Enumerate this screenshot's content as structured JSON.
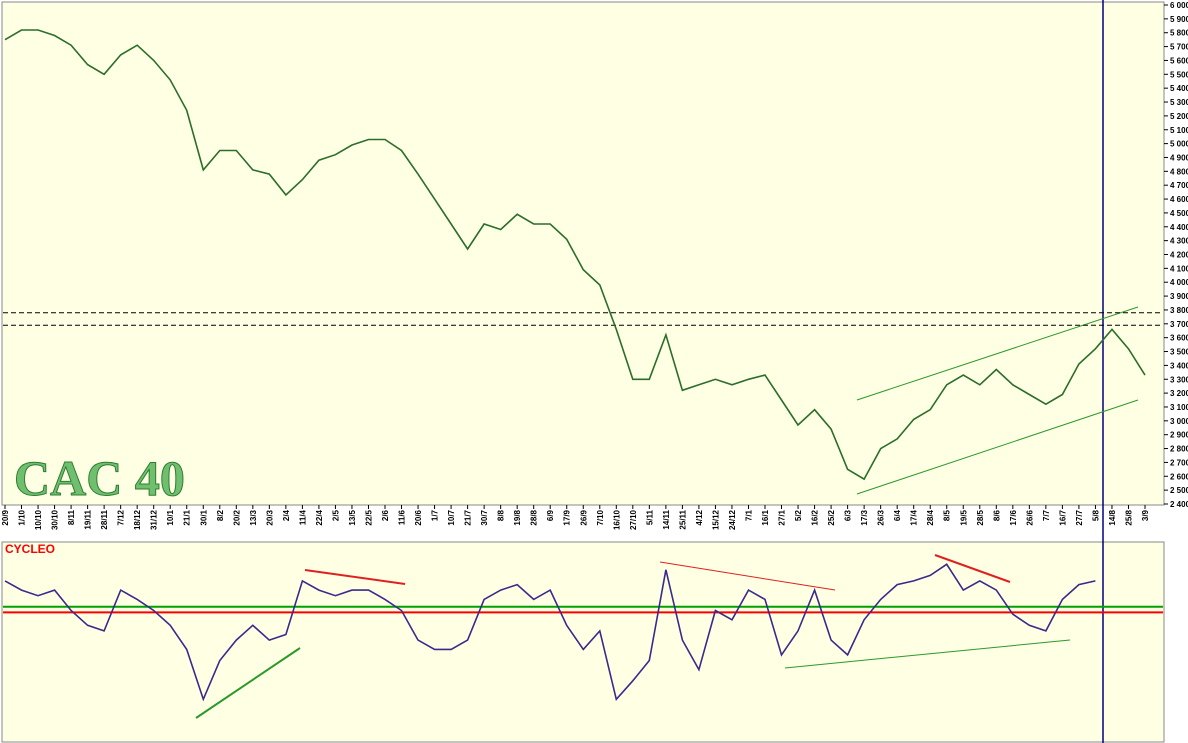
{
  "chart_data": [
    {
      "type": "line",
      "title": "CAC 40",
      "categories": [
        "20/9",
        "1/10",
        "10/10",
        "30/10",
        "8/11",
        "19/11",
        "28/11",
        "7/12",
        "18/12",
        "31/12",
        "10/1",
        "21/1",
        "30/1",
        "8/2",
        "20/2",
        "13/3",
        "20/3",
        "2/4",
        "11/4",
        "22/4",
        "2/5",
        "13/5",
        "22/5",
        "2/6",
        "11/6",
        "20/6",
        "1/7",
        "10/7",
        "21/7",
        "30/7",
        "8/8",
        "19/8",
        "28/8",
        "6/9",
        "17/9",
        "26/9",
        "7/10",
        "16/10",
        "27/10",
        "5/11",
        "14/11",
        "25/11",
        "4/12",
        "15/12",
        "24/12",
        "7/1",
        "16/1",
        "27/1",
        "5/2",
        "16/2",
        "25/2",
        "6/3",
        "17/3",
        "26/3",
        "6/4",
        "17/4",
        "28/4",
        "8/5",
        "19/5",
        "28/5",
        "8/6",
        "17/6",
        "26/6",
        "7/7",
        "16/7",
        "27/7",
        "5/8",
        "14/8",
        "25/8",
        "3/9"
      ],
      "series": [
        {
          "color": "#2a6e2a",
          "values": [
            5750,
            5820,
            5820,
            5780,
            5710,
            5570,
            5500,
            5640,
            5710,
            5600,
            5460,
            5240,
            4810,
            4950,
            4950,
            4810,
            4780,
            4630,
            4740,
            4880,
            4920,
            4990,
            5030,
            5030,
            4950,
            4780,
            4600,
            4420,
            4240,
            4420,
            4380,
            4490,
            4420,
            4420,
            4310,
            4090,
            3980,
            3660,
            3300,
            3300,
            3620,
            3220,
            3260,
            3300,
            3260,
            3300,
            3330,
            3150,
            2970,
            3080,
            2940,
            2650,
            2580,
            2800,
            2870,
            3010,
            3080,
            3260,
            3330,
            3260,
            3370,
            3260,
            3190,
            3120,
            3190,
            3410,
            3520,
            3660,
            3520,
            3330
          ]
        }
      ],
      "ylim": [
        2400,
        6000
      ],
      "yticks": [
        {
          "value": 2400,
          "label": "2 400"
        },
        {
          "value": 2500,
          "label": "2 500"
        },
        {
          "value": 2600,
          "label": "2 600"
        },
        {
          "value": 2700,
          "label": "2 700"
        },
        {
          "value": 2800,
          "label": "2 800"
        },
        {
          "value": 2900,
          "label": "2 900"
        },
        {
          "value": 3000,
          "label": "3 000"
        },
        {
          "value": 3100,
          "label": "3 100"
        },
        {
          "value": 3200,
          "label": "3 200"
        },
        {
          "value": 3300,
          "label": "3 300"
        },
        {
          "value": 3400,
          "label": "3 400"
        },
        {
          "value": 3500,
          "label": "3 500"
        },
        {
          "value": 3600,
          "label": "3 600"
        },
        {
          "value": 3700,
          "label": "3 700"
        },
        {
          "value": 3800,
          "label": "3 800"
        },
        {
          "value": 3900,
          "label": "3 900"
        },
        {
          "value": 4000,
          "label": "4 000"
        },
        {
          "value": 4100,
          "label": "4 100"
        },
        {
          "value": 4200,
          "label": "4 200"
        },
        {
          "value": 4300,
          "label": "4 300"
        },
        {
          "value": 4400,
          "label": "4 400"
        },
        {
          "value": 4500,
          "label": "4 500"
        },
        {
          "value": 4600,
          "label": "4 600"
        },
        {
          "value": 4700,
          "label": "4 700"
        },
        {
          "value": 4800,
          "label": "4 800"
        },
        {
          "value": 4900,
          "label": "4 900"
        },
        {
          "value": 5000,
          "label": "5 000"
        },
        {
          "value": 5100,
          "label": "5 100"
        },
        {
          "value": 5200,
          "label": "5 200"
        },
        {
          "value": 5300,
          "label": "5 300"
        },
        {
          "value": 5400,
          "label": "5 400"
        },
        {
          "value": 5500,
          "label": "5 500"
        },
        {
          "value": 5600,
          "label": "5 600"
        },
        {
          "value": 5700,
          "label": "5 700"
        },
        {
          "value": 5800,
          "label": "5 800"
        },
        {
          "value": 5900,
          "label": "5 900"
        },
        {
          "value": 6000,
          "label": "6 000"
        }
      ],
      "reference_lines": [
        {
          "value": 3780,
          "color": "#000000"
        },
        {
          "value": 3690,
          "color": "#000000"
        }
      ]
    },
    {
      "type": "line",
      "title": "CYCLEO",
      "series": [
        {
          "color": "#3a2a8c",
          "values": [
            86,
            81,
            78,
            81,
            70,
            62,
            59,
            81,
            76,
            70,
            62,
            49,
            22,
            43,
            54,
            62,
            54,
            57,
            86,
            81,
            78,
            81,
            81,
            76,
            70,
            54,
            49,
            49,
            54,
            76,
            81,
            84,
            76,
            81,
            62,
            49,
            59,
            22,
            32,
            43,
            92,
            54,
            38,
            70,
            65,
            81,
            76,
            46,
            59,
            81,
            54,
            46,
            65,
            76,
            84,
            86,
            89,
            95,
            81,
            86,
            81,
            68,
            62,
            59,
            76,
            84,
            86,
            null,
            null,
            null
          ]
        }
      ],
      "ylim": [
        0,
        100
      ],
      "reference_lines": [
        {
          "value": 69,
          "color": "#ff0000"
        },
        {
          "value": 72,
          "color": "#00a000"
        }
      ]
    }
  ]
}
